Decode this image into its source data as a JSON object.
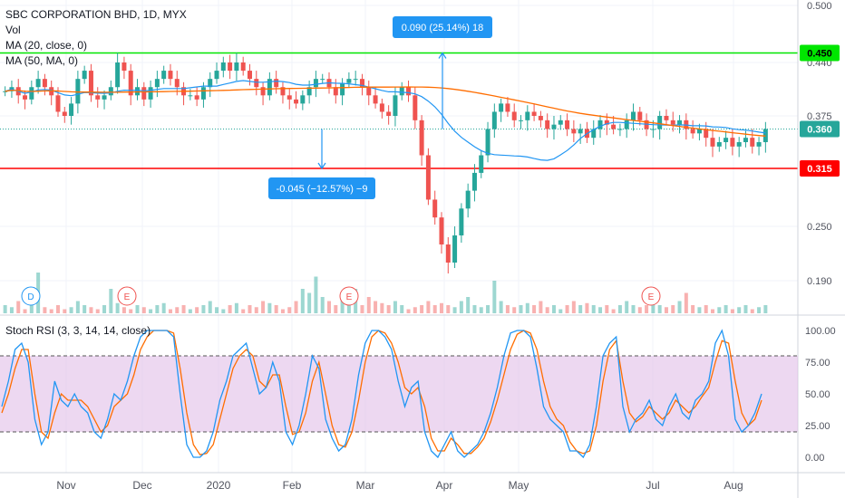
{
  "header": {
    "title": "SBC CORPORATION BHD, 1D, MYX",
    "vol_label": "Vol",
    "ma20_label": "MA (20, close, 0)",
    "ma50_label": "MA (50, MA, 0)"
  },
  "rsi_header": {
    "label": "Stoch RSI (3, 3, 14, 14, close)"
  },
  "colors": {
    "up": "#26a69a",
    "down": "#ef5350",
    "ma20": "#2196f3",
    "ma50": "#ff6d00",
    "resistance": "#00e600",
    "support": "#ff0000",
    "last": "#26a69a",
    "callout": "#2196f3",
    "rsi_band": "#e1bee7",
    "rsi_k": "#2196f3",
    "rsi_d": "#ff6d00"
  },
  "chart_data": [
    {
      "type": "candlestick",
      "price_ticks": [
        "0.500",
        "0.440",
        "0.375",
        "0.315",
        "0.250",
        "0.190"
      ],
      "levels": [
        {
          "name": "resistance",
          "value": 0.45,
          "label": "0.450"
        },
        {
          "name": "last",
          "value": 0.36,
          "label": "0.360"
        },
        {
          "name": "support",
          "value": 0.315,
          "label": "0.315"
        }
      ],
      "callouts": [
        {
          "text": "0.090 (25.14%) 18",
          "from": 0.36,
          "to": 0.45,
          "date": "Apr"
        },
        {
          "text": "-0.045 (−12.57%) −9",
          "from": 0.36,
          "to": 0.315,
          "date": "Feb"
        }
      ],
      "x_labels": [
        "Nov",
        "Dec",
        "2020",
        "Feb",
        "Mar",
        "Apr",
        "May",
        "Jul",
        "Aug"
      ],
      "events": [
        {
          "letter": "D",
          "month": "Nov"
        },
        {
          "letter": "E",
          "month": "Nov"
        },
        {
          "letter": "E",
          "month": "Mar"
        },
        {
          "letter": "E",
          "month": "Jul"
        }
      ],
      "series_ma": [
        "MA (20, close, 0)",
        "MA (50, MA, 0)"
      ],
      "close_path": [
        0.405,
        0.41,
        0.4,
        0.395,
        0.41,
        0.42,
        0.41,
        0.4,
        0.38,
        0.375,
        0.39,
        0.42,
        0.43,
        0.4,
        0.395,
        0.4,
        0.41,
        0.44,
        0.43,
        0.4,
        0.41,
        0.395,
        0.41,
        0.42,
        0.43,
        0.42,
        0.41,
        0.4,
        0.4,
        0.395,
        0.41,
        0.42,
        0.43,
        0.44,
        0.43,
        0.44,
        0.43,
        0.42,
        0.41,
        0.4,
        0.42,
        0.41,
        0.4,
        0.395,
        0.39,
        0.4,
        0.41,
        0.42,
        0.42,
        0.41,
        0.4,
        0.415,
        0.42,
        0.42,
        0.41,
        0.4,
        0.39,
        0.38,
        0.375,
        0.4,
        0.41,
        0.4,
        0.37,
        0.33,
        0.28,
        0.26,
        0.23,
        0.21,
        0.24,
        0.27,
        0.29,
        0.31,
        0.33,
        0.36,
        0.38,
        0.39,
        0.38,
        0.37,
        0.37,
        0.38,
        0.375,
        0.37,
        0.36,
        0.365,
        0.37,
        0.36,
        0.355,
        0.36,
        0.35,
        0.36,
        0.37,
        0.365,
        0.36,
        0.36,
        0.37,
        0.38,
        0.37,
        0.36,
        0.36,
        0.375,
        0.37,
        0.365,
        0.37,
        0.36,
        0.355,
        0.36,
        0.35,
        0.34,
        0.345,
        0.35,
        0.34,
        0.345,
        0.35,
        0.34,
        0.345,
        0.36
      ],
      "volume_path": [
        0.2,
        0.15,
        0.3,
        0.1,
        0.2,
        1.0,
        0.15,
        0.1,
        0.2,
        0.1,
        0.15,
        0.3,
        0.2,
        0.15,
        0.1,
        0.2,
        0.6,
        0.25,
        0.15,
        0.1,
        0.2,
        0.15,
        0.1,
        0.2,
        0.25,
        0.1,
        0.15,
        0.2,
        0.1,
        0.15,
        0.2,
        0.3,
        0.15,
        0.1,
        0.2,
        0.25,
        0.1,
        0.2,
        0.15,
        0.3,
        0.25,
        0.2,
        0.1,
        0.15,
        0.3,
        0.6,
        0.5,
        0.9,
        0.4,
        0.3,
        0.2,
        0.5,
        0.4,
        0.6,
        0.2,
        0.4,
        0.3,
        0.25,
        0.2,
        0.3,
        0.2,
        0.1,
        0.15,
        0.2,
        0.3,
        0.2,
        0.25,
        0.2,
        0.15,
        0.3,
        0.4,
        0.2,
        0.15,
        0.2,
        0.8,
        0.3,
        0.2,
        0.15,
        0.2,
        0.25,
        0.2,
        0.3,
        0.15,
        0.2,
        0.1,
        0.2,
        0.3,
        0.2,
        0.25,
        0.2,
        0.15,
        0.2,
        0.1,
        0.2,
        0.3,
        0.2,
        0.15,
        0.2,
        0.25,
        0.2,
        0.15,
        0.2,
        0.3,
        0.5,
        0.2,
        0.15,
        0.2,
        0.1,
        0.15,
        0.2,
        0.1,
        0.15,
        0.2,
        0.1,
        0.15,
        0.2
      ]
    },
    {
      "type": "line",
      "title": "Stoch RSI (3, 3, 14, 14, close)",
      "y_ticks": [
        "100.00",
        "75.00",
        "50.00",
        "25.00",
        "0.00"
      ],
      "ylim": [
        0,
        100
      ],
      "band": [
        20,
        80
      ],
      "series": [
        {
          "name": "K",
          "values": [
            40,
            60,
            85,
            90,
            75,
            30,
            10,
            20,
            60,
            45,
            40,
            50,
            40,
            35,
            20,
            15,
            30,
            50,
            45,
            60,
            80,
            95,
            100,
            100,
            100,
            100,
            95,
            50,
            10,
            0,
            0,
            5,
            20,
            45,
            60,
            80,
            85,
            90,
            70,
            50,
            55,
            75,
            60,
            20,
            10,
            25,
            50,
            80,
            70,
            30,
            15,
            5,
            10,
            30,
            65,
            90,
            100,
            100,
            95,
            85,
            60,
            40,
            55,
            60,
            20,
            5,
            0,
            10,
            20,
            5,
            0,
            5,
            10,
            20,
            35,
            55,
            80,
            98,
            100,
            100,
            95,
            70,
            40,
            30,
            25,
            20,
            5,
            5,
            0,
            10,
            40,
            80,
            90,
            95,
            40,
            20,
            30,
            35,
            45,
            30,
            25,
            40,
            50,
            35,
            30,
            45,
            50,
            60,
            90,
            100,
            80,
            30,
            20,
            25,
            35,
            50
          ]
        },
        {
          "name": "D",
          "values": [
            35,
            50,
            70,
            85,
            85,
            50,
            20,
            15,
            35,
            50,
            45,
            45,
            45,
            40,
            30,
            20,
            25,
            40,
            45,
            50,
            65,
            85,
            95,
            100,
            100,
            100,
            98,
            70,
            35,
            10,
            2,
            3,
            10,
            30,
            50,
            70,
            80,
            85,
            80,
            60,
            55,
            65,
            65,
            40,
            18,
            20,
            35,
            60,
            75,
            50,
            25,
            10,
            8,
            20,
            45,
            75,
            95,
            100,
            98,
            90,
            75,
            55,
            50,
            55,
            40,
            15,
            5,
            5,
            15,
            10,
            3,
            3,
            8,
            15,
            28,
            45,
            65,
            85,
            97,
            100,
            98,
            85,
            60,
            40,
            30,
            25,
            12,
            5,
            3,
            5,
            25,
            60,
            85,
            92,
            60,
            35,
            28,
            32,
            40,
            35,
            30,
            35,
            45,
            40,
            35,
            40,
            48,
            55,
            75,
            92,
            90,
            60,
            35,
            25,
            30,
            45
          ]
        }
      ]
    }
  ]
}
